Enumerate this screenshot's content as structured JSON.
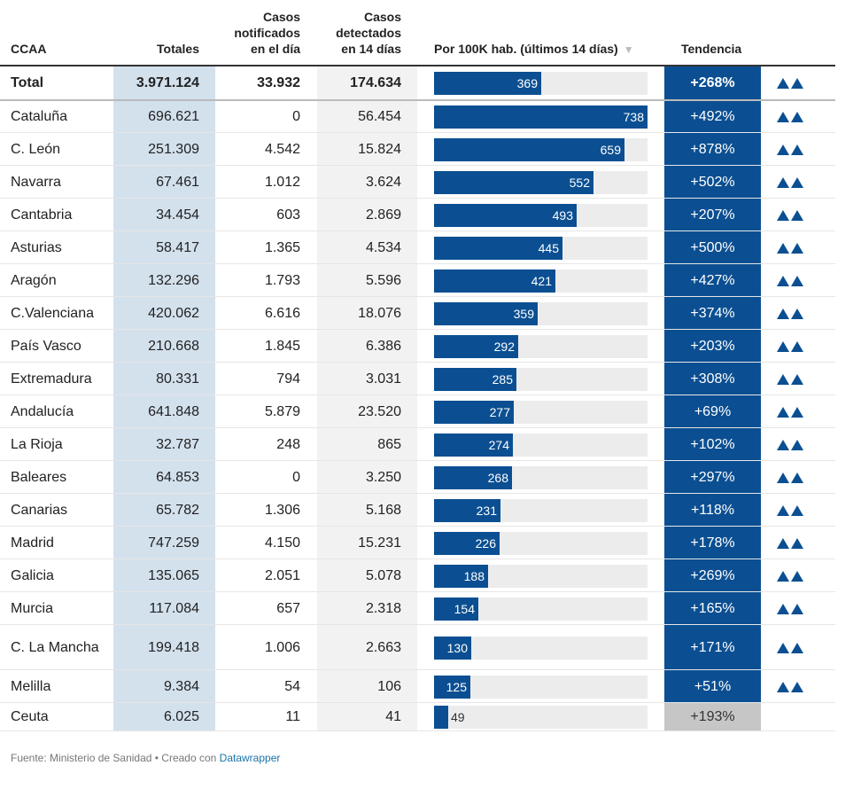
{
  "headers": {
    "ccaa": "CCAA",
    "totales": "Totales",
    "notificados": [
      "Casos",
      "notificados",
      "en el día"
    ],
    "detectados": [
      "Casos",
      "detectados",
      "en 14 días"
    ],
    "por100k": "Por 100K hab. (últimos 14 días)",
    "sort_icon": "▼",
    "tendencia": "Tendencia"
  },
  "chart_data": {
    "type": "table",
    "bar_max": 738,
    "total": {
      "name": "Total",
      "totales": "3.971.124",
      "dia": "33.932",
      "det": "174.634",
      "value": 369,
      "tend": "+268%",
      "arrow": true
    },
    "rows": [
      {
        "name": "Cataluña",
        "totales": "696.621",
        "dia": "0",
        "det": "56.454",
        "value": 738,
        "tend": "+492%",
        "arrow": true
      },
      {
        "name": "C. León",
        "totales": "251.309",
        "dia": "4.542",
        "det": "15.824",
        "value": 659,
        "tend": "+878%",
        "arrow": true
      },
      {
        "name": "Navarra",
        "totales": "67.461",
        "dia": "1.012",
        "det": "3.624",
        "value": 552,
        "tend": "+502%",
        "arrow": true
      },
      {
        "name": "Cantabria",
        "totales": "34.454",
        "dia": "603",
        "det": "2.869",
        "value": 493,
        "tend": "+207%",
        "arrow": true
      },
      {
        "name": "Asturias",
        "totales": "58.417",
        "dia": "1.365",
        "det": "4.534",
        "value": 445,
        "tend": "+500%",
        "arrow": true
      },
      {
        "name": "Aragón",
        "totales": "132.296",
        "dia": "1.793",
        "det": "5.596",
        "value": 421,
        "tend": "+427%",
        "arrow": true
      },
      {
        "name": "C.Valenciana",
        "totales": "420.062",
        "dia": "6.616",
        "det": "18.076",
        "value": 359,
        "tend": "+374%",
        "arrow": true
      },
      {
        "name": "País Vasco",
        "totales": "210.668",
        "dia": "1.845",
        "det": "6.386",
        "value": 292,
        "tend": "+203%",
        "arrow": true
      },
      {
        "name": "Extremadura",
        "totales": "80.331",
        "dia": "794",
        "det": "3.031",
        "value": 285,
        "tend": "+308%",
        "arrow": true
      },
      {
        "name": "Andalucía",
        "totales": "641.848",
        "dia": "5.879",
        "det": "23.520",
        "value": 277,
        "tend": "+69%",
        "arrow": true
      },
      {
        "name": "La Rioja",
        "totales": "32.787",
        "dia": "248",
        "det": "865",
        "value": 274,
        "tend": "+102%",
        "arrow": true
      },
      {
        "name": "Baleares",
        "totales": "64.853",
        "dia": "0",
        "det": "3.250",
        "value": 268,
        "tend": "+297%",
        "arrow": true
      },
      {
        "name": "Canarias",
        "totales": "65.782",
        "dia": "1.306",
        "det": "5.168",
        "value": 231,
        "tend": "+118%",
        "arrow": true
      },
      {
        "name": "Madrid",
        "totales": "747.259",
        "dia": "4.150",
        "det": "15.231",
        "value": 226,
        "tend": "+178%",
        "arrow": true
      },
      {
        "name": "Galicia",
        "totales": "135.065",
        "dia": "2.051",
        "det": "5.078",
        "value": 188,
        "tend": "+269%",
        "arrow": true
      },
      {
        "name": "Murcia",
        "totales": "117.084",
        "dia": "657",
        "det": "2.318",
        "value": 154,
        "tend": "+165%",
        "arrow": true
      },
      {
        "name": "C. La Mancha",
        "totales": "199.418",
        "dia": "1.006",
        "det": "2.663",
        "value": 130,
        "tend": "+171%",
        "arrow": true
      },
      {
        "name": "Melilla",
        "totales": "9.384",
        "dia": "54",
        "det": "106",
        "value": 125,
        "tend": "+51%",
        "arrow": true
      },
      {
        "name": "Ceuta",
        "totales": "6.025",
        "dia": "11",
        "det": "41",
        "value": 49,
        "tend": "+193%",
        "arrow": false,
        "gray": true
      }
    ]
  },
  "colors": {
    "bar": "#0b4f92",
    "track": "#ececec",
    "tend_blue": "#0b4f92",
    "tend_gray": "#c6c6c6",
    "col_totales": "#d3e1ed",
    "col_detectados": "#f2f2f2"
  },
  "footer": {
    "text": "Fuente: Ministerio de Sanidad • Creado con ",
    "link": "Datawrapper"
  }
}
